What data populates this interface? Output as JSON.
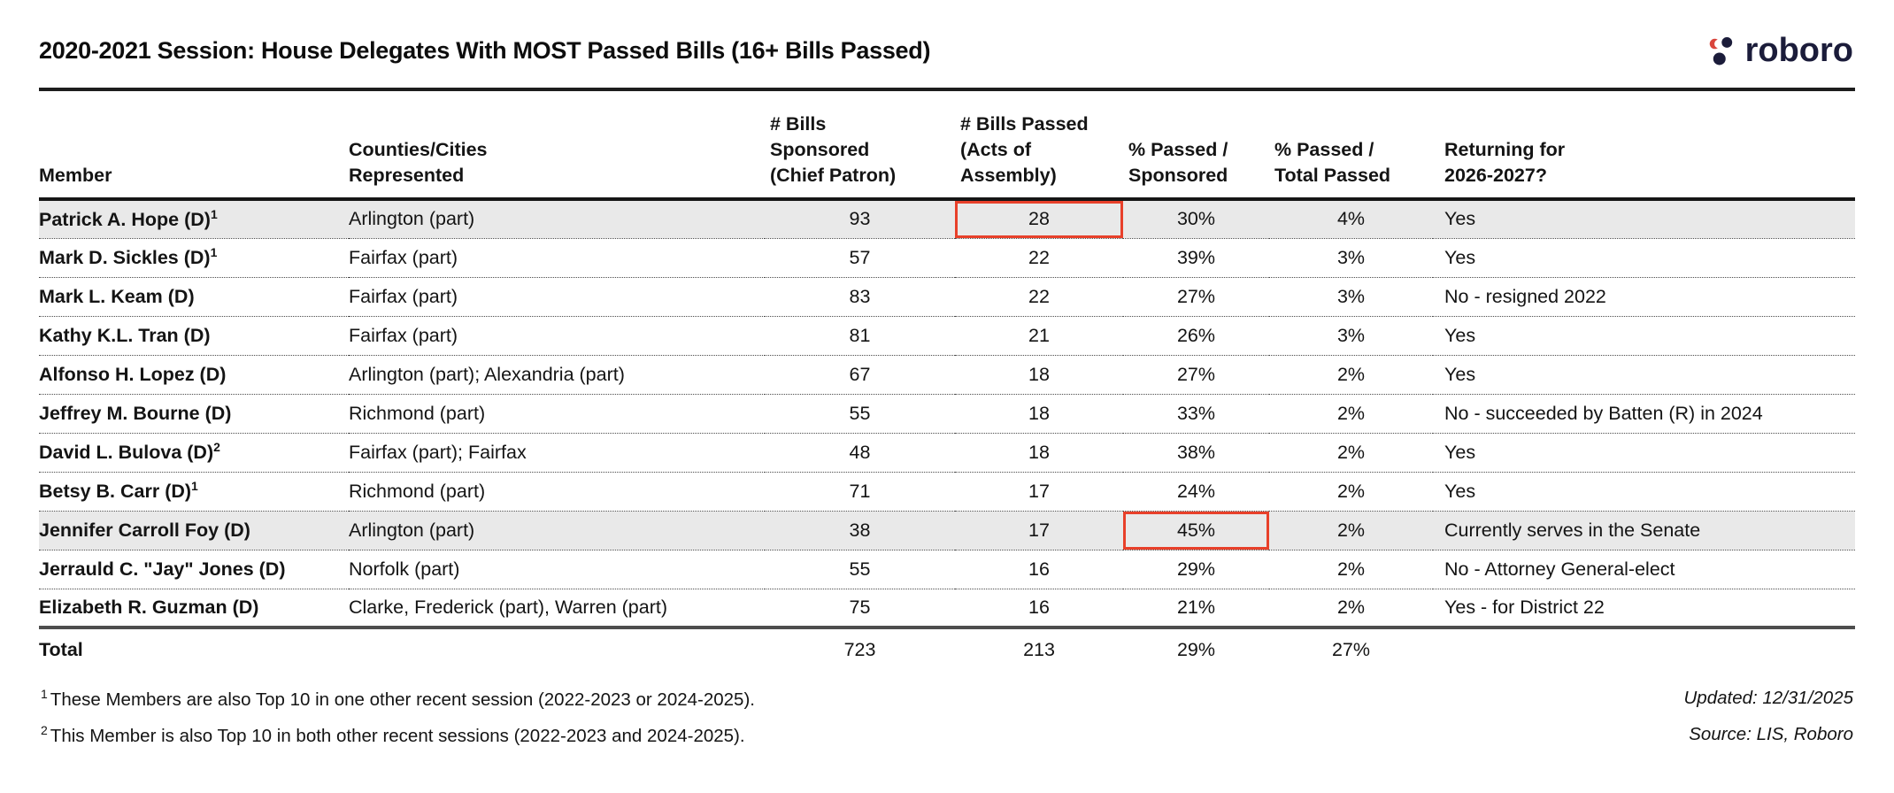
{
  "title": "2020-2021 Session: House Delegates With MOST Passed Bills (16+ Bills Passed)",
  "logo": {
    "brand": "roboro"
  },
  "table": {
    "header": {
      "member": [
        "Member"
      ],
      "counties": [
        "Counties/Cities",
        "Represented"
      ],
      "sponsored": [
        "# Bills",
        "Sponsored",
        "(Chief Patron)"
      ],
      "passed": [
        "# Bills Passed",
        "(Acts of",
        "Assembly)"
      ],
      "pct_sponsored": [
        "% Passed /",
        "Sponsored"
      ],
      "pct_total": [
        "% Passed /",
        "Total Passed"
      ],
      "returning": [
        "Returning for",
        "2026-2027?"
      ]
    },
    "rows": [
      {
        "member": "Patrick A. Hope (D)",
        "footnote": "1",
        "counties": "Arlington (part)",
        "sponsored": "93",
        "passed": "28",
        "pct_sponsored": "30%",
        "pct_total": "4%",
        "returning": "Yes",
        "highlight": true,
        "red_box": "passed"
      },
      {
        "member": "Mark D. Sickles (D)",
        "footnote": "1",
        "counties": "Fairfax (part)",
        "sponsored": "57",
        "passed": "22",
        "pct_sponsored": "39%",
        "pct_total": "3%",
        "returning": "Yes",
        "highlight": false,
        "red_box": null
      },
      {
        "member": "Mark L. Keam (D)",
        "footnote": null,
        "counties": "Fairfax (part)",
        "sponsored": "83",
        "passed": "22",
        "pct_sponsored": "27%",
        "pct_total": "3%",
        "returning": "No - resigned 2022",
        "highlight": false,
        "red_box": null
      },
      {
        "member": "Kathy K.L. Tran (D)",
        "footnote": null,
        "counties": "Fairfax (part)",
        "sponsored": "81",
        "passed": "21",
        "pct_sponsored": "26%",
        "pct_total": "3%",
        "returning": "Yes",
        "highlight": false,
        "red_box": null
      },
      {
        "member": "Alfonso H. Lopez (D)",
        "footnote": null,
        "counties": "Arlington (part); Alexandria (part)",
        "sponsored": "67",
        "passed": "18",
        "pct_sponsored": "27%",
        "pct_total": "2%",
        "returning": "Yes",
        "highlight": false,
        "red_box": null
      },
      {
        "member": "Jeffrey M. Bourne (D)",
        "footnote": null,
        "counties": "Richmond (part)",
        "sponsored": "55",
        "passed": "18",
        "pct_sponsored": "33%",
        "pct_total": "2%",
        "returning": "No - succeeded by Batten (R) in 2024",
        "highlight": false,
        "red_box": null
      },
      {
        "member": "David L. Bulova (D)",
        "footnote": "2",
        "counties": "Fairfax (part); Fairfax",
        "sponsored": "48",
        "passed": "18",
        "pct_sponsored": "38%",
        "pct_total": "2%",
        "returning": "Yes",
        "highlight": false,
        "red_box": null
      },
      {
        "member": "Betsy B. Carr (D)",
        "footnote": "1",
        "counties": "Richmond (part)",
        "sponsored": "71",
        "passed": "17",
        "pct_sponsored": "24%",
        "pct_total": "2%",
        "returning": "Yes",
        "highlight": false,
        "red_box": null
      },
      {
        "member": "Jennifer Carroll Foy (D)",
        "footnote": null,
        "counties": "Arlington (part)",
        "sponsored": "38",
        "passed": "17",
        "pct_sponsored": "45%",
        "pct_total": "2%",
        "returning": "Currently serves in the Senate",
        "highlight": true,
        "red_box": "pct_sponsored"
      },
      {
        "member": "Jerrauld C. \"Jay\" Jones (D)",
        "footnote": null,
        "counties": "Norfolk (part)",
        "sponsored": "55",
        "passed": "16",
        "pct_sponsored": "29%",
        "pct_total": "2%",
        "returning": "No - Attorney General-elect",
        "highlight": false,
        "red_box": null
      },
      {
        "member": "Elizabeth R. Guzman (D)",
        "footnote": null,
        "counties": "Clarke, Frederick (part), Warren (part)",
        "sponsored": "75",
        "passed": "16",
        "pct_sponsored": "21%",
        "pct_total": "2%",
        "returning": "Yes - for District 22",
        "highlight": false,
        "red_box": null
      }
    ],
    "total": {
      "label": "Total",
      "sponsored": "723",
      "passed": "213",
      "pct_sponsored": "29%",
      "pct_total": "27%"
    }
  },
  "footnotes": [
    {
      "sup": "1",
      "text": "These Members are also Top 10 in one other recent session (2022-2023 or 2024-2025)."
    },
    {
      "sup": "2",
      "text": "This Member is also Top 10 in both other recent sessions (2022-2023 and 2024-2025)."
    }
  ],
  "meta": {
    "updated": "Updated: 12/31/2025",
    "source": "Source: LIS, Roboro"
  },
  "colors": {
    "highlight_row": "#e9e9e9",
    "red_box": "#e8402a",
    "logo_navy": "#1b1c3a",
    "logo_red": "#d9453c",
    "header_rule": "#161616",
    "total_rule": "#4d4d4d"
  }
}
